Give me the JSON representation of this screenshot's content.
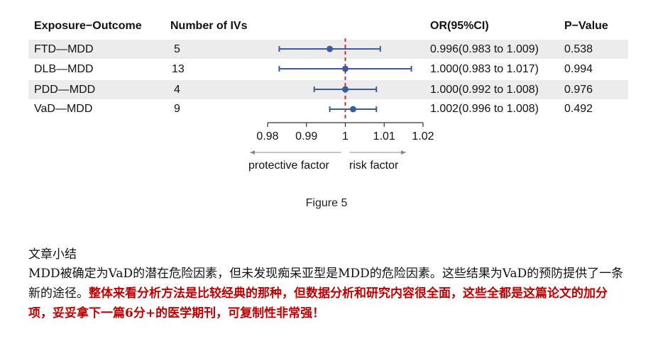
{
  "table": {
    "headers": {
      "exposure_outcome": "Exposure−Outcome",
      "num_ivs": "Number of IVs",
      "or_ci": "OR(95%CI)",
      "p_value": "P−Value"
    },
    "rows": [
      {
        "label": "FTD—MDD",
        "ivs": "5",
        "or_text": "0.996(0.983 to 1.009)",
        "p": "0.538"
      },
      {
        "label": "DLB—MDD",
        "ivs": "13",
        "or_text": "1.000(0.983 to 1.017)",
        "p": "0.994"
      },
      {
        "label": "PDD—MDD",
        "ivs": "4",
        "or_text": "1.000(0.992 to 1.008)",
        "p": "0.976"
      },
      {
        "label": "VaD—MDD",
        "ivs": "9",
        "or_text": "1.002(0.996 to 1.008)",
        "p": "0.492"
      }
    ]
  },
  "chart_data": {
    "type": "forest",
    "x_ticks": [
      "0.98",
      "0.99",
      "1",
      "1.01",
      "1.02"
    ],
    "x_tick_values": [
      0.98,
      0.99,
      1.0,
      1.01,
      1.02
    ],
    "xlim": [
      0.98,
      1.02
    ],
    "reference_line": 1.0,
    "estimates": [
      {
        "or": 0.996,
        "lower": 0.983,
        "upper": 1.009
      },
      {
        "or": 1.0,
        "lower": 0.983,
        "upper": 1.017
      },
      {
        "or": 1.0,
        "lower": 0.992,
        "upper": 1.008
      },
      {
        "or": 1.002,
        "lower": 0.996,
        "upper": 1.008
      }
    ],
    "left_arrow_label": "protective factor",
    "right_arrow_label": "risk factor",
    "colors": {
      "ci": "#3b5b9a",
      "point": "#3b5b9a",
      "ref": "#d03030",
      "row_bg": "#ececec"
    }
  },
  "figure_caption": "Figure 5",
  "summary": {
    "title": "文章小结",
    "body_plain": "MDD被确定为VaD的潜在危险因素，但未发现痴呆亚型是MDD的危险因素。这些结果为VaD的预防提供了一条新的途径。",
    "body_highlight": "整体来看分析方法是比较经典的那种，但数据分析和研究内容很全面，这些全都是这篇论文的加分项，妥妥拿下一篇6分+的医学期刊，可复制性非常强！"
  }
}
